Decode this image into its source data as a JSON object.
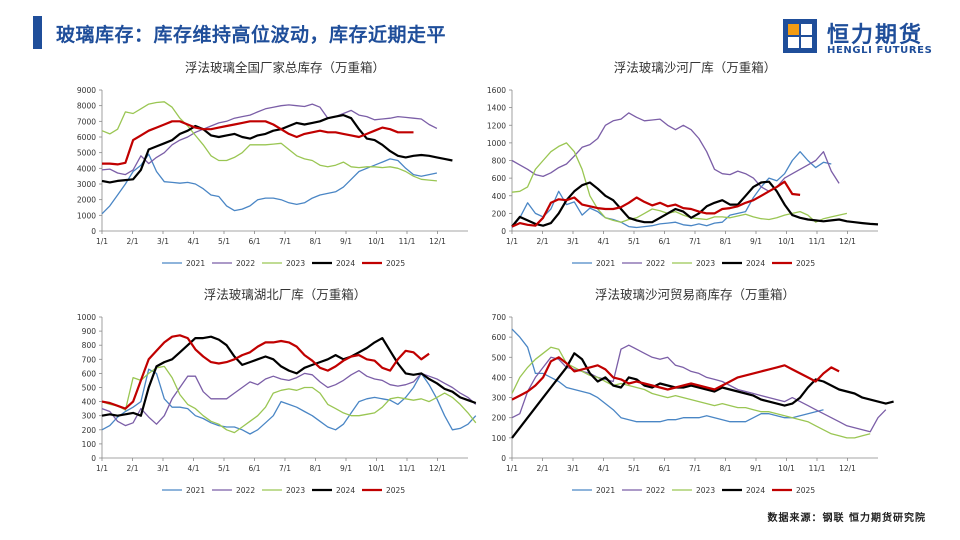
{
  "header": {
    "title": "玻璃库存：库存维持高位波动，库存近期走平",
    "logo_cn": "恒力期货",
    "logo_en": "HENGLI FUTURES"
  },
  "footer": {
    "source": "数据来源：钢联  恒力期货研究院"
  },
  "colors": {
    "brand": "#1f4e9a",
    "2021": "#4a86c5",
    "2022": "#7b5ea7",
    "2023": "#9ac653",
    "2024": "#000000",
    "2025": "#c00000"
  },
  "chart_data": [
    {
      "type": "line",
      "title": "浮法玻璃全国厂家总库存（万重箱）",
      "x_ticks": [
        "1/1",
        "2/1",
        "3/1",
        "4/1",
        "5/1",
        "6/1",
        "7/1",
        "8/1",
        "9/1",
        "10/1",
        "11/1",
        "12/1"
      ],
      "ylim": [
        0,
        9000
      ],
      "y_ticks": [
        "0",
        "1000",
        "2000",
        "3000",
        "4000",
        "5000",
        "6000",
        "7000",
        "8000",
        "9000"
      ],
      "legend_position": "bottom",
      "series": [
        {
          "name": "2021",
          "values": [
            1100,
            1600,
            2300,
            3000,
            3800,
            4200,
            4900,
            3800,
            3150,
            3100,
            3050,
            3100,
            3000,
            2700,
            2300,
            2200,
            1600,
            1300,
            1400,
            1600,
            2000,
            2100,
            2100,
            2000,
            1800,
            1700,
            1800,
            2100,
            2300,
            2400,
            2500,
            2800,
            3300,
            3800,
            4000,
            4200,
            4400,
            4600,
            4500,
            4000,
            3600,
            3500,
            3600,
            3700
          ]
        },
        {
          "name": "2022",
          "values": [
            3900,
            3950,
            3700,
            3600,
            3900,
            4800,
            4300,
            4700,
            5000,
            5500,
            5800,
            6000,
            6300,
            6500,
            6700,
            6900,
            7000,
            7200,
            7300,
            7400,
            7600,
            7800,
            7900,
            8000,
            8050,
            8000,
            7950,
            8100,
            7900,
            7200,
            7300,
            7500,
            7700,
            7400,
            7300,
            7100,
            7150,
            7200,
            7300,
            7250,
            7200,
            7150,
            6800,
            6550
          ]
        },
        {
          "name": "2023",
          "values": [
            6400,
            6200,
            6500,
            7600,
            7500,
            7800,
            8100,
            8200,
            8250,
            7900,
            7200,
            6700,
            6100,
            5500,
            4800,
            4500,
            4500,
            4700,
            5000,
            5500,
            5500,
            5500,
            5550,
            5600,
            5200,
            4800,
            4600,
            4500,
            4200,
            4100,
            4200,
            4400,
            4100,
            4050,
            4100,
            4100,
            4050,
            4100,
            4000,
            3800,
            3500,
            3300,
            3250,
            3200
          ]
        },
        {
          "name": "2024",
          "values": [
            3200,
            3100,
            3200,
            3250,
            3300,
            3900,
            5200,
            5400,
            5600,
            5800,
            6200,
            6400,
            6700,
            6500,
            6100,
            6000,
            6100,
            6200,
            6000,
            5900,
            6100,
            6200,
            6400,
            6500,
            6700,
            6900,
            6800,
            6900,
            7000,
            7200,
            7300,
            7400,
            7200,
            6500,
            5900,
            5800,
            5500,
            5100,
            4800,
            4700,
            4800,
            4850,
            4800,
            4700,
            4600,
            4500
          ]
        },
        {
          "name": "2025",
          "values": [
            4300,
            4300,
            4250,
            4350,
            5800,
            6100,
            6400,
            6600,
            6800,
            7000,
            7000,
            6800,
            6600,
            6500,
            6500,
            6600,
            6700,
            6800,
            6900,
            7000,
            7000,
            7000,
            6800,
            6500,
            6200,
            6000,
            6200,
            6300,
            6400,
            6300,
            6300,
            6200,
            6100,
            6000,
            6200,
            6400,
            6600,
            6500,
            6300,
            6300,
            6300
          ]
        }
      ]
    },
    {
      "type": "line",
      "title": "浮法玻璃沙河厂库（万重箱）",
      "x_ticks": [
        "1/1",
        "2/1",
        "3/1",
        "4/1",
        "5/1",
        "6/1",
        "7/1",
        "8/1",
        "9/1",
        "10/1",
        "11/1",
        "12/1"
      ],
      "ylim": [
        0,
        1600
      ],
      "y_ticks": [
        "0",
        "200",
        "400",
        "600",
        "800",
        "1000",
        "1200",
        "1400",
        "1600"
      ],
      "legend_position": "bottom",
      "series": [
        {
          "name": "2021",
          "values": [
            40,
            150,
            320,
            200,
            160,
            250,
            450,
            300,
            330,
            180,
            260,
            220,
            150,
            130,
            100,
            50,
            40,
            50,
            60,
            80,
            90,
            100,
            70,
            60,
            80,
            60,
            90,
            100,
            180,
            200,
            220,
            380,
            500,
            600,
            570,
            650,
            800,
            900,
            800,
            720,
            780,
            760
          ]
        },
        {
          "name": "2022",
          "values": [
            800,
            750,
            700,
            640,
            620,
            660,
            720,
            760,
            850,
            950,
            980,
            1050,
            1200,
            1250,
            1270,
            1340,
            1290,
            1250,
            1260,
            1270,
            1200,
            1150,
            1200,
            1150,
            1050,
            900,
            700,
            650,
            640,
            680,
            650,
            600,
            500,
            450,
            500,
            600,
            650,
            700,
            750,
            800,
            900,
            680,
            540
          ]
        },
        {
          "name": "2023",
          "values": [
            440,
            450,
            500,
            700,
            800,
            900,
            960,
            1000,
            900,
            700,
            400,
            250,
            150,
            120,
            100,
            130,
            150,
            200,
            250,
            230,
            200,
            220,
            180,
            150,
            140,
            130,
            160,
            160,
            150,
            170,
            190,
            160,
            140,
            130,
            150,
            180,
            200,
            220,
            180,
            100,
            140,
            160,
            180,
            200
          ]
        },
        {
          "name": "2024",
          "values": [
            50,
            160,
            120,
            80,
            60,
            90,
            200,
            350,
            450,
            520,
            550,
            480,
            400,
            350,
            250,
            150,
            120,
            100,
            100,
            150,
            200,
            250,
            220,
            150,
            200,
            280,
            320,
            350,
            300,
            300,
            400,
            500,
            550,
            560,
            450,
            300,
            180,
            150,
            130,
            120,
            110,
            120,
            130,
            110,
            100,
            90,
            80,
            75
          ]
        },
        {
          "name": "2025",
          "values": [
            50,
            90,
            70,
            60,
            150,
            320,
            360,
            350,
            380,
            300,
            280,
            260,
            250,
            250,
            270,
            320,
            380,
            330,
            290,
            320,
            280,
            300,
            260,
            250,
            220,
            200,
            200,
            250,
            260,
            280,
            320,
            350,
            400,
            450,
            500,
            560,
            420,
            410
          ]
        }
      ]
    },
    {
      "type": "line",
      "title": "浮法玻璃湖北厂库（万重箱）",
      "x_ticks": [
        "1/1",
        "2/1",
        "3/1",
        "4/1",
        "5/1",
        "6/1",
        "7/1",
        "8/1",
        "9/1",
        "10/1",
        "11/1",
        "12/1"
      ],
      "ylim": [
        0,
        1000
      ],
      "y_ticks": [
        "0",
        "100",
        "200",
        "300",
        "400",
        "500",
        "600",
        "700",
        "800",
        "900",
        "1000"
      ],
      "legend_position": "bottom",
      "series": [
        {
          "name": "2021",
          "values": [
            200,
            230,
            290,
            330,
            360,
            400,
            630,
            600,
            420,
            360,
            360,
            350,
            300,
            280,
            250,
            230,
            220,
            220,
            200,
            170,
            200,
            250,
            300,
            400,
            380,
            360,
            330,
            300,
            260,
            220,
            200,
            240,
            320,
            400,
            420,
            430,
            420,
            410,
            380,
            430,
            500,
            600,
            520,
            420,
            300,
            200,
            210,
            240,
            300
          ]
        },
        {
          "name": "2022",
          "values": [
            350,
            330,
            260,
            230,
            250,
            350,
            290,
            240,
            300,
            420,
            500,
            580,
            580,
            470,
            420,
            420,
            420,
            460,
            500,
            540,
            520,
            560,
            580,
            560,
            550,
            570,
            600,
            590,
            540,
            500,
            520,
            550,
            590,
            620,
            580,
            560,
            550,
            520,
            510,
            520,
            540,
            600,
            580,
            560,
            530,
            500,
            460,
            430,
            380
          ]
        },
        {
          "name": "2023",
          "values": [
            400,
            380,
            370,
            340,
            570,
            550,
            600,
            640,
            650,
            570,
            450,
            380,
            350,
            300,
            260,
            240,
            200,
            180,
            220,
            260,
            300,
            360,
            460,
            480,
            490,
            480,
            500,
            500,
            460,
            380,
            350,
            320,
            300,
            300,
            310,
            320,
            360,
            420,
            430,
            420,
            410,
            420,
            400,
            430,
            460,
            430,
            380,
            320,
            250
          ]
        },
        {
          "name": "2024",
          "values": [
            300,
            310,
            300,
            310,
            320,
            300,
            500,
            650,
            680,
            700,
            750,
            800,
            850,
            850,
            860,
            840,
            800,
            720,
            660,
            680,
            700,
            720,
            700,
            650,
            620,
            600,
            640,
            660,
            680,
            700,
            730,
            700,
            720,
            750,
            780,
            820,
            850,
            760,
            670,
            600,
            590,
            600,
            560,
            530,
            490,
            470,
            430,
            410,
            390
          ]
        },
        {
          "name": "2025",
          "values": [
            400,
            390,
            370,
            350,
            400,
            550,
            700,
            760,
            820,
            860,
            870,
            850,
            770,
            720,
            680,
            670,
            680,
            700,
            730,
            750,
            790,
            820,
            820,
            830,
            820,
            790,
            730,
            690,
            640,
            620,
            650,
            690,
            720,
            730,
            700,
            690,
            640,
            620,
            700,
            760,
            750,
            700,
            740
          ]
        }
      ]
    },
    {
      "type": "line",
      "title": "浮法玻璃沙河贸易商库存（万重箱）",
      "x_ticks": [
        "1/1",
        "2/1",
        "3/1",
        "4/1",
        "5/1",
        "6/1",
        "7/1",
        "8/1",
        "9/1",
        "10/1",
        "11/1",
        "12/1"
      ],
      "ylim": [
        0,
        700
      ],
      "y_ticks": [
        "0",
        "100",
        "200",
        "300",
        "400",
        "500",
        "600",
        "700"
      ],
      "legend_position": "bottom",
      "series": [
        {
          "name": "2021",
          "values": [
            640,
            600,
            550,
            420,
            420,
            400,
            380,
            350,
            340,
            330,
            320,
            300,
            270,
            240,
            200,
            190,
            180,
            180,
            180,
            180,
            190,
            190,
            200,
            200,
            200,
            210,
            200,
            190,
            180,
            180,
            180,
            200,
            220,
            220,
            210,
            200,
            200,
            210,
            220,
            230,
            240
          ]
        },
        {
          "name": "2022",
          "values": [
            200,
            220,
            330,
            400,
            450,
            500,
            490,
            450,
            440,
            430,
            420,
            400,
            390,
            380,
            540,
            560,
            540,
            520,
            500,
            490,
            500,
            460,
            450,
            430,
            420,
            400,
            390,
            380,
            360,
            340,
            330,
            320,
            310,
            300,
            290,
            280,
            300,
            280,
            260,
            240,
            220,
            200,
            180,
            160,
            150,
            140,
            130,
            200,
            240
          ]
        },
        {
          "name": "2023",
          "values": [
            320,
            400,
            450,
            490,
            520,
            550,
            540,
            470,
            450,
            430,
            410,
            400,
            380,
            360,
            370,
            360,
            350,
            340,
            320,
            310,
            300,
            310,
            300,
            290,
            280,
            270,
            260,
            270,
            260,
            250,
            250,
            240,
            230,
            230,
            220,
            210,
            200,
            190,
            180,
            160,
            140,
            120,
            110,
            100,
            100,
            110,
            120
          ]
        },
        {
          "name": "2024",
          "values": [
            100,
            150,
            200,
            250,
            300,
            350,
            400,
            450,
            520,
            490,
            420,
            380,
            400,
            360,
            350,
            400,
            390,
            360,
            350,
            370,
            360,
            350,
            350,
            360,
            350,
            340,
            330,
            350,
            340,
            330,
            320,
            310,
            290,
            280,
            270,
            260,
            270,
            300,
            350,
            390,
            380,
            360,
            340,
            330,
            320,
            300,
            290,
            280,
            270,
            280
          ]
        },
        {
          "name": "2025",
          "values": [
            290,
            310,
            330,
            360,
            400,
            480,
            500,
            470,
            430,
            440,
            450,
            460,
            440,
            400,
            390,
            370,
            380,
            370,
            360,
            350,
            340,
            350,
            360,
            370,
            360,
            350,
            340,
            360,
            380,
            400,
            410,
            420,
            430,
            440,
            450,
            460,
            440,
            420,
            400,
            380,
            420,
            450,
            430
          ]
        }
      ]
    }
  ]
}
